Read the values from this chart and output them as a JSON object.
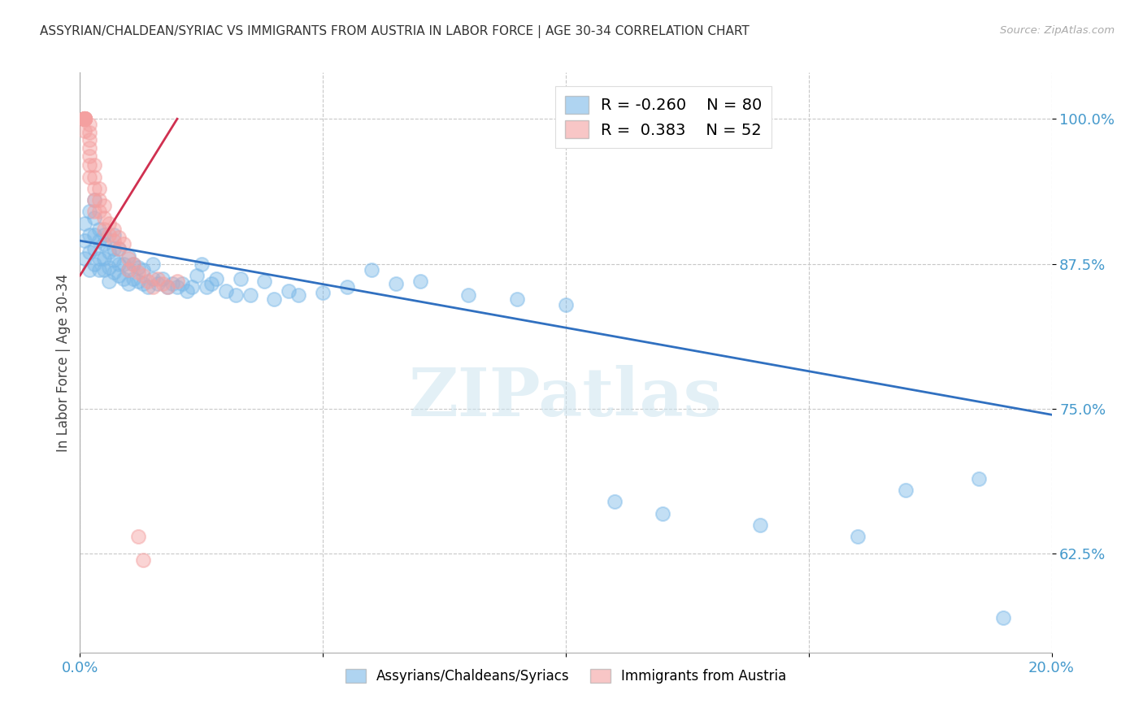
{
  "title": "ASSYRIAN/CHALDEAN/SYRIAC VS IMMIGRANTS FROM AUSTRIA IN LABOR FORCE | AGE 30-34 CORRELATION CHART",
  "source": "Source: ZipAtlas.com",
  "ylabel": "In Labor Force | Age 30-34",
  "yticks": [
    0.625,
    0.75,
    0.875,
    1.0
  ],
  "ytick_labels": [
    "62.5%",
    "75.0%",
    "87.5%",
    "100.0%"
  ],
  "xmin": 0.0,
  "xmax": 0.2,
  "ymin": 0.54,
  "ymax": 1.04,
  "legend_R_blue": "-0.260",
  "legend_N_blue": "80",
  "legend_R_pink": "0.383",
  "legend_N_pink": "52",
  "blue_color": "#7ab8e8",
  "pink_color": "#f4a0a0",
  "blue_line_color": "#3070c0",
  "pink_line_color": "#d03050",
  "blue_scatter_x": [
    0.001,
    0.001,
    0.001,
    0.002,
    0.002,
    0.002,
    0.002,
    0.003,
    0.003,
    0.003,
    0.003,
    0.003,
    0.004,
    0.004,
    0.004,
    0.004,
    0.005,
    0.005,
    0.005,
    0.005,
    0.006,
    0.006,
    0.006,
    0.007,
    0.007,
    0.007,
    0.007,
    0.008,
    0.008,
    0.008,
    0.009,
    0.009,
    0.01,
    0.01,
    0.01,
    0.011,
    0.011,
    0.012,
    0.012,
    0.013,
    0.013,
    0.014,
    0.015,
    0.015,
    0.016,
    0.017,
    0.018,
    0.019,
    0.02,
    0.021,
    0.022,
    0.023,
    0.024,
    0.025,
    0.026,
    0.027,
    0.028,
    0.03,
    0.032,
    0.033,
    0.035,
    0.038,
    0.04,
    0.043,
    0.045,
    0.05,
    0.055,
    0.06,
    0.065,
    0.07,
    0.08,
    0.09,
    0.1,
    0.11,
    0.12,
    0.14,
    0.16,
    0.17,
    0.185,
    0.19
  ],
  "blue_scatter_y": [
    0.88,
    0.895,
    0.91,
    0.87,
    0.885,
    0.9,
    0.92,
    0.875,
    0.888,
    0.9,
    0.915,
    0.93,
    0.87,
    0.88,
    0.895,
    0.905,
    0.87,
    0.88,
    0.892,
    0.9,
    0.86,
    0.872,
    0.885,
    0.868,
    0.878,
    0.888,
    0.9,
    0.865,
    0.875,
    0.888,
    0.862,
    0.875,
    0.858,
    0.87,
    0.882,
    0.862,
    0.875,
    0.86,
    0.872,
    0.858,
    0.87,
    0.855,
    0.862,
    0.875,
    0.858,
    0.862,
    0.855,
    0.858,
    0.855,
    0.858,
    0.852,
    0.855,
    0.865,
    0.875,
    0.855,
    0.858,
    0.862,
    0.852,
    0.848,
    0.862,
    0.848,
    0.86,
    0.845,
    0.852,
    0.848,
    0.85,
    0.855,
    0.87,
    0.858,
    0.86,
    0.848,
    0.845,
    0.84,
    0.67,
    0.66,
    0.65,
    0.64,
    0.68,
    0.69,
    0.57
  ],
  "pink_scatter_x": [
    0.001,
    0.001,
    0.001,
    0.001,
    0.001,
    0.001,
    0.001,
    0.001,
    0.001,
    0.001,
    0.001,
    0.001,
    0.001,
    0.001,
    0.002,
    0.002,
    0.002,
    0.002,
    0.002,
    0.002,
    0.002,
    0.003,
    0.003,
    0.003,
    0.003,
    0.003,
    0.004,
    0.004,
    0.004,
    0.005,
    0.005,
    0.005,
    0.006,
    0.006,
    0.007,
    0.007,
    0.008,
    0.008,
    0.009,
    0.01,
    0.01,
    0.011,
    0.012,
    0.013,
    0.014,
    0.015,
    0.016,
    0.017,
    0.018,
    0.02,
    0.012,
    0.013
  ],
  "pink_scatter_y": [
    1.0,
    1.0,
    1.0,
    1.0,
    1.0,
    1.0,
    1.0,
    1.0,
    1.0,
    1.0,
    1.0,
    1.0,
    1.0,
    0.99,
    0.995,
    0.988,
    0.982,
    0.975,
    0.968,
    0.96,
    0.95,
    0.96,
    0.95,
    0.94,
    0.93,
    0.92,
    0.94,
    0.93,
    0.92,
    0.925,
    0.915,
    0.905,
    0.91,
    0.9,
    0.905,
    0.895,
    0.898,
    0.888,
    0.892,
    0.88,
    0.87,
    0.875,
    0.868,
    0.865,
    0.86,
    0.855,
    0.862,
    0.858,
    0.855,
    0.86,
    0.64,
    0.62
  ],
  "blue_line_x": [
    0.0,
    0.2
  ],
  "blue_line_y": [
    0.895,
    0.745
  ],
  "pink_line_x": [
    0.0,
    0.02
  ],
  "pink_line_y": [
    0.865,
    1.0
  ],
  "title_fontsize": 11,
  "tick_label_color": "#4499cc",
  "grid_color": "#c8c8c8",
  "background_color": "#ffffff"
}
